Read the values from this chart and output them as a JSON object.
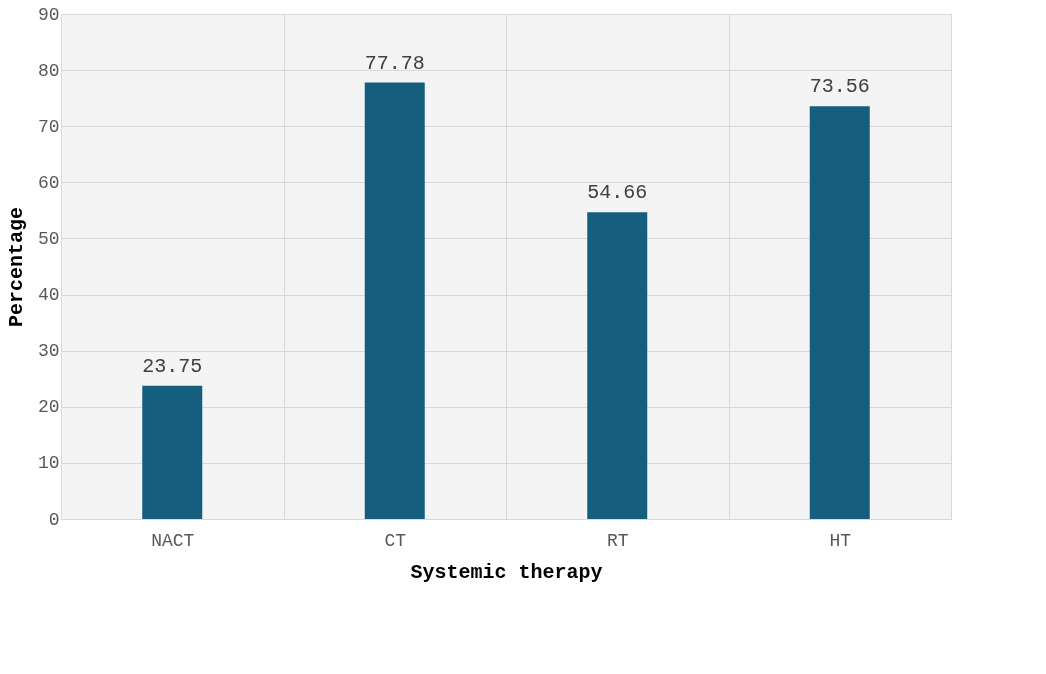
{
  "chart_data": {
    "type": "bar",
    "xlabel": "Systemic therapy",
    "ylabel": "Percentage",
    "categories": [
      "NACT",
      "CT",
      "RT",
      "HT"
    ],
    "values": [
      23.75,
      77.78,
      54.66,
      73.56
    ],
    "color": "#155e7e",
    "ylim": [
      0,
      90
    ],
    "yticks": [
      0,
      10,
      20,
      30,
      40,
      50,
      60,
      70,
      80,
      90
    ],
    "grid": true,
    "data_labels": true
  }
}
